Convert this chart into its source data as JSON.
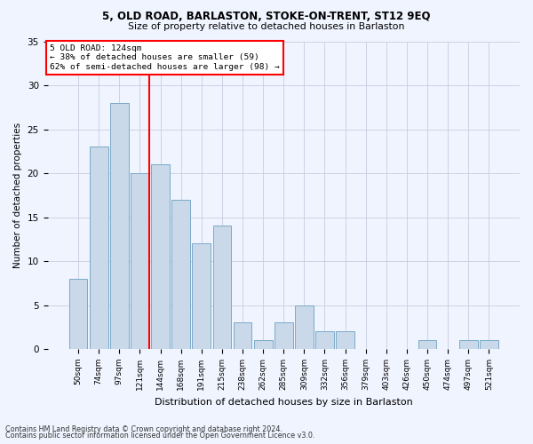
{
  "title1": "5, OLD ROAD, BARLASTON, STOKE-ON-TRENT, ST12 9EQ",
  "title2": "Size of property relative to detached houses in Barlaston",
  "xlabel": "Distribution of detached houses by size in Barlaston",
  "ylabel": "Number of detached properties",
  "categories": [
    "50sqm",
    "74sqm",
    "97sqm",
    "121sqm",
    "144sqm",
    "168sqm",
    "191sqm",
    "215sqm",
    "238sqm",
    "262sqm",
    "285sqm",
    "309sqm",
    "332sqm",
    "356sqm",
    "379sqm",
    "403sqm",
    "426sqm",
    "450sqm",
    "474sqm",
    "497sqm",
    "521sqm"
  ],
  "values": [
    8,
    23,
    28,
    20,
    21,
    17,
    12,
    14,
    3,
    1,
    3,
    5,
    2,
    2,
    0,
    0,
    0,
    1,
    0,
    1,
    1
  ],
  "bar_color": "#c9d9ea",
  "bar_edge_color": "#7aaac8",
  "red_line_index": 3,
  "annotation_title": "5 OLD ROAD: 124sqm",
  "annotation_line1": "← 38% of detached houses are smaller (59)",
  "annotation_line2": "62% of semi-detached houses are larger (98) →",
  "ylim": [
    0,
    35
  ],
  "yticks": [
    0,
    5,
    10,
    15,
    20,
    25,
    30,
    35
  ],
  "footer1": "Contains HM Land Registry data © Crown copyright and database right 2024.",
  "footer2": "Contains public sector information licensed under the Open Government Licence v3.0.",
  "bg_color": "#f0f4ff",
  "grid_color": "#c8cce0"
}
